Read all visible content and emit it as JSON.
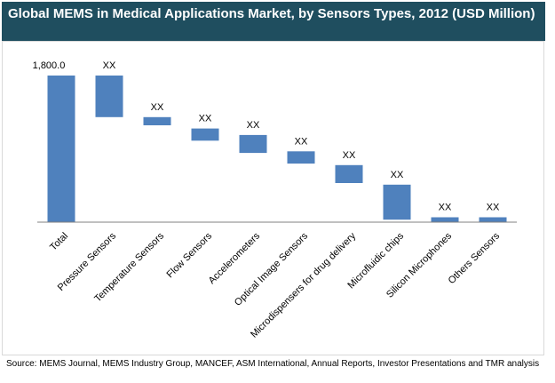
{
  "title": "Global MEMS in Medical Applications Market, by Sensors Types, 2012 (USD Million)",
  "source": "Source: MEMS Journal, MEMS Industry Group, MANCEF, ASM International, Annual Reports, Investor Presentations and TMR analysis",
  "colors": {
    "bar": "#4f81bd",
    "title_bg": "#1f4e5f",
    "axis": "#808080"
  },
  "chart_data": {
    "type": "bar",
    "subtype": "waterfall",
    "categories": [
      "Total",
      "Pressure Sensors",
      "Temperature Sensors",
      "Flow Sensors",
      "Accelerometers",
      "Optical Image Sensors",
      "Microdispensers for drug delivery",
      "Microfluidic chips",
      "Silicon Microphones",
      "Others Sensors"
    ],
    "bars": [
      {
        "start": 0,
        "end": 1800
      },
      {
        "start": 1290,
        "end": 1800
      },
      {
        "start": 1190,
        "end": 1290
      },
      {
        "start": 1000,
        "end": 1150
      },
      {
        "start": 850,
        "end": 1070
      },
      {
        "start": 720,
        "end": 870
      },
      {
        "start": 480,
        "end": 700
      },
      {
        "start": 30,
        "end": 460
      },
      {
        "start": 0,
        "end": 60
      },
      {
        "start": 0,
        "end": 60
      }
    ],
    "data_labels": [
      "1,800.0",
      "XX",
      "XX",
      "XX",
      "XX",
      "XX",
      "XX",
      "XX",
      "XX",
      "XX"
    ],
    "ylim": [
      0,
      1800
    ],
    "grid": false,
    "legend": "none"
  }
}
